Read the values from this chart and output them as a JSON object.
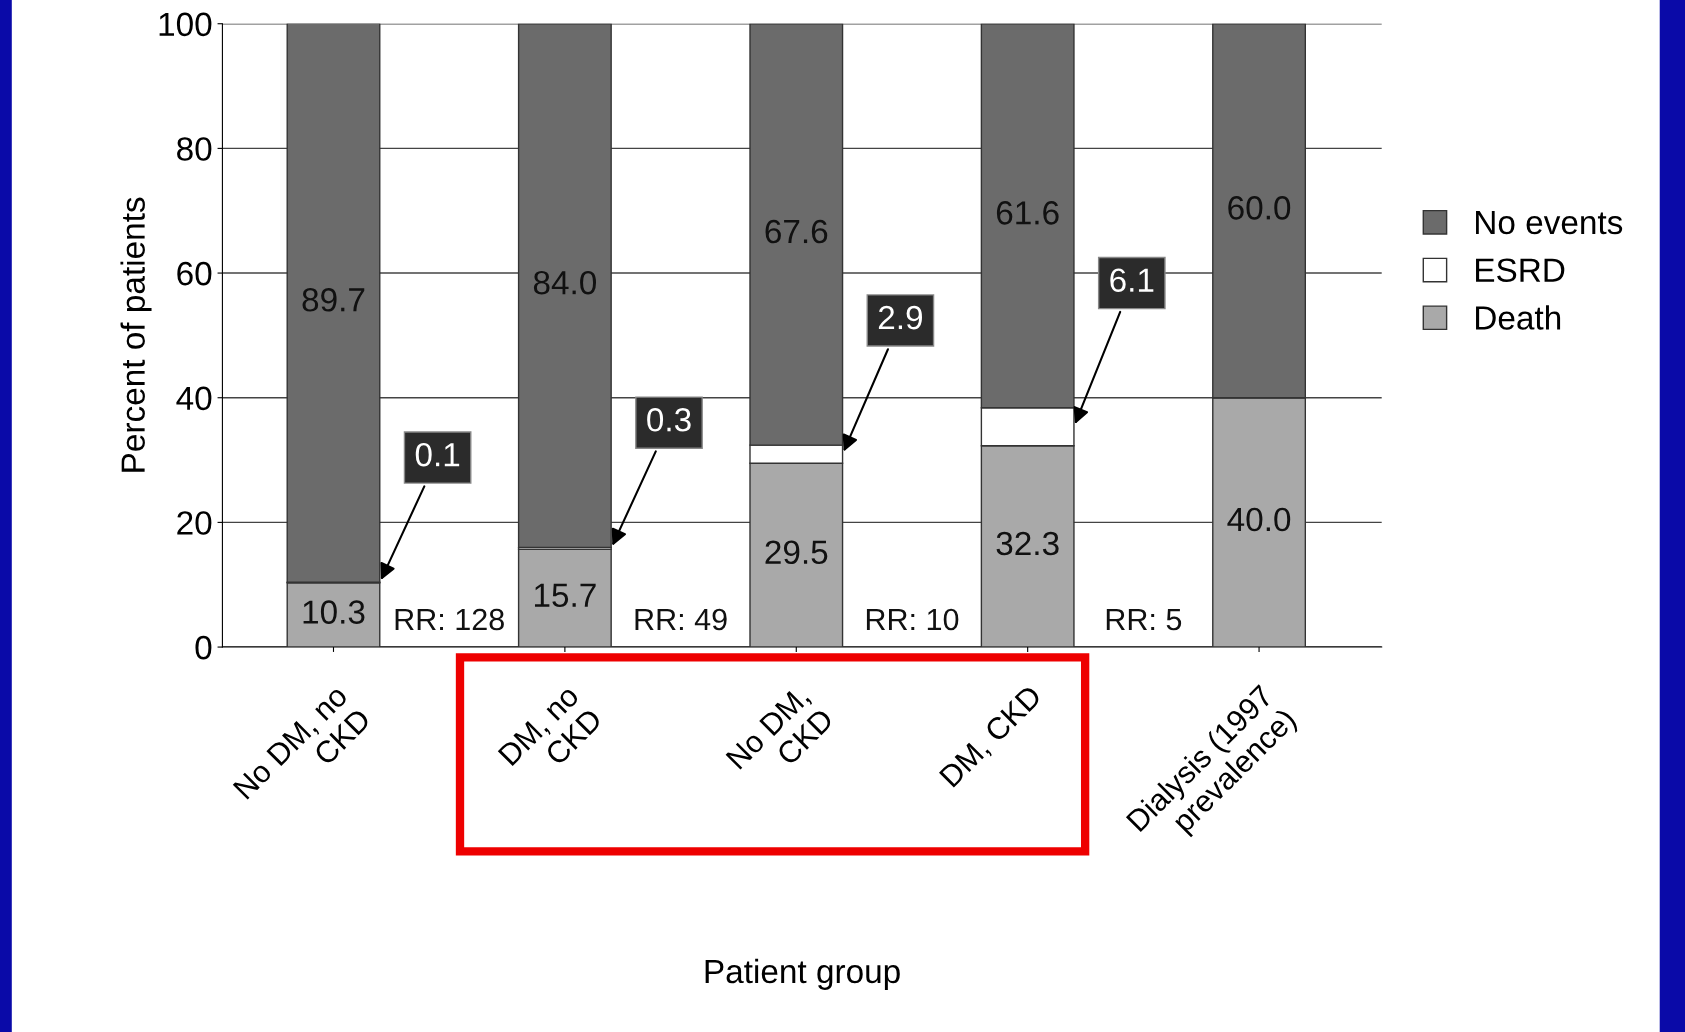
{
  "chart_data": {
    "type": "bar",
    "stacked": true,
    "xlabel": "Patient group",
    "ylabel": "Percent of patients",
    "categories": [
      "No DM, no\nCKD",
      "DM, no\nCKD",
      "No DM,\nCKD",
      "DM, CKD",
      "Dialysis (1997\nprevalence)"
    ],
    "series": [
      {
        "name": "Death",
        "color": "#a9a9a9",
        "values": [
          10.3,
          15.7,
          29.5,
          32.3,
          40.0
        ],
        "value_labels": [
          "10.3",
          "15.7",
          "29.5",
          "32.3",
          "40.0"
        ]
      },
      {
        "name": "ESRD",
        "color": "#ffffff",
        "values": [
          0.1,
          0.3,
          2.9,
          6.1,
          0
        ],
        "value_labels": [
          "0.1",
          "0.3",
          "2.9",
          "6.1",
          null
        ]
      },
      {
        "name": "No events",
        "color": "#6b6b6b",
        "values": [
          89.7,
          84.0,
          67.6,
          61.6,
          60.0
        ],
        "value_labels": [
          "89.7",
          "84.0",
          "67.6",
          "61.6",
          "60.0"
        ]
      }
    ],
    "annotations": [
      "RR: 128",
      "RR: 49",
      "RR: 10",
      "RR: 5"
    ],
    "ylim": [
      0,
      100
    ],
    "yticks": [
      0,
      20,
      40,
      60,
      80,
      100
    ],
    "grid": "y",
    "legend": "right"
  }
}
